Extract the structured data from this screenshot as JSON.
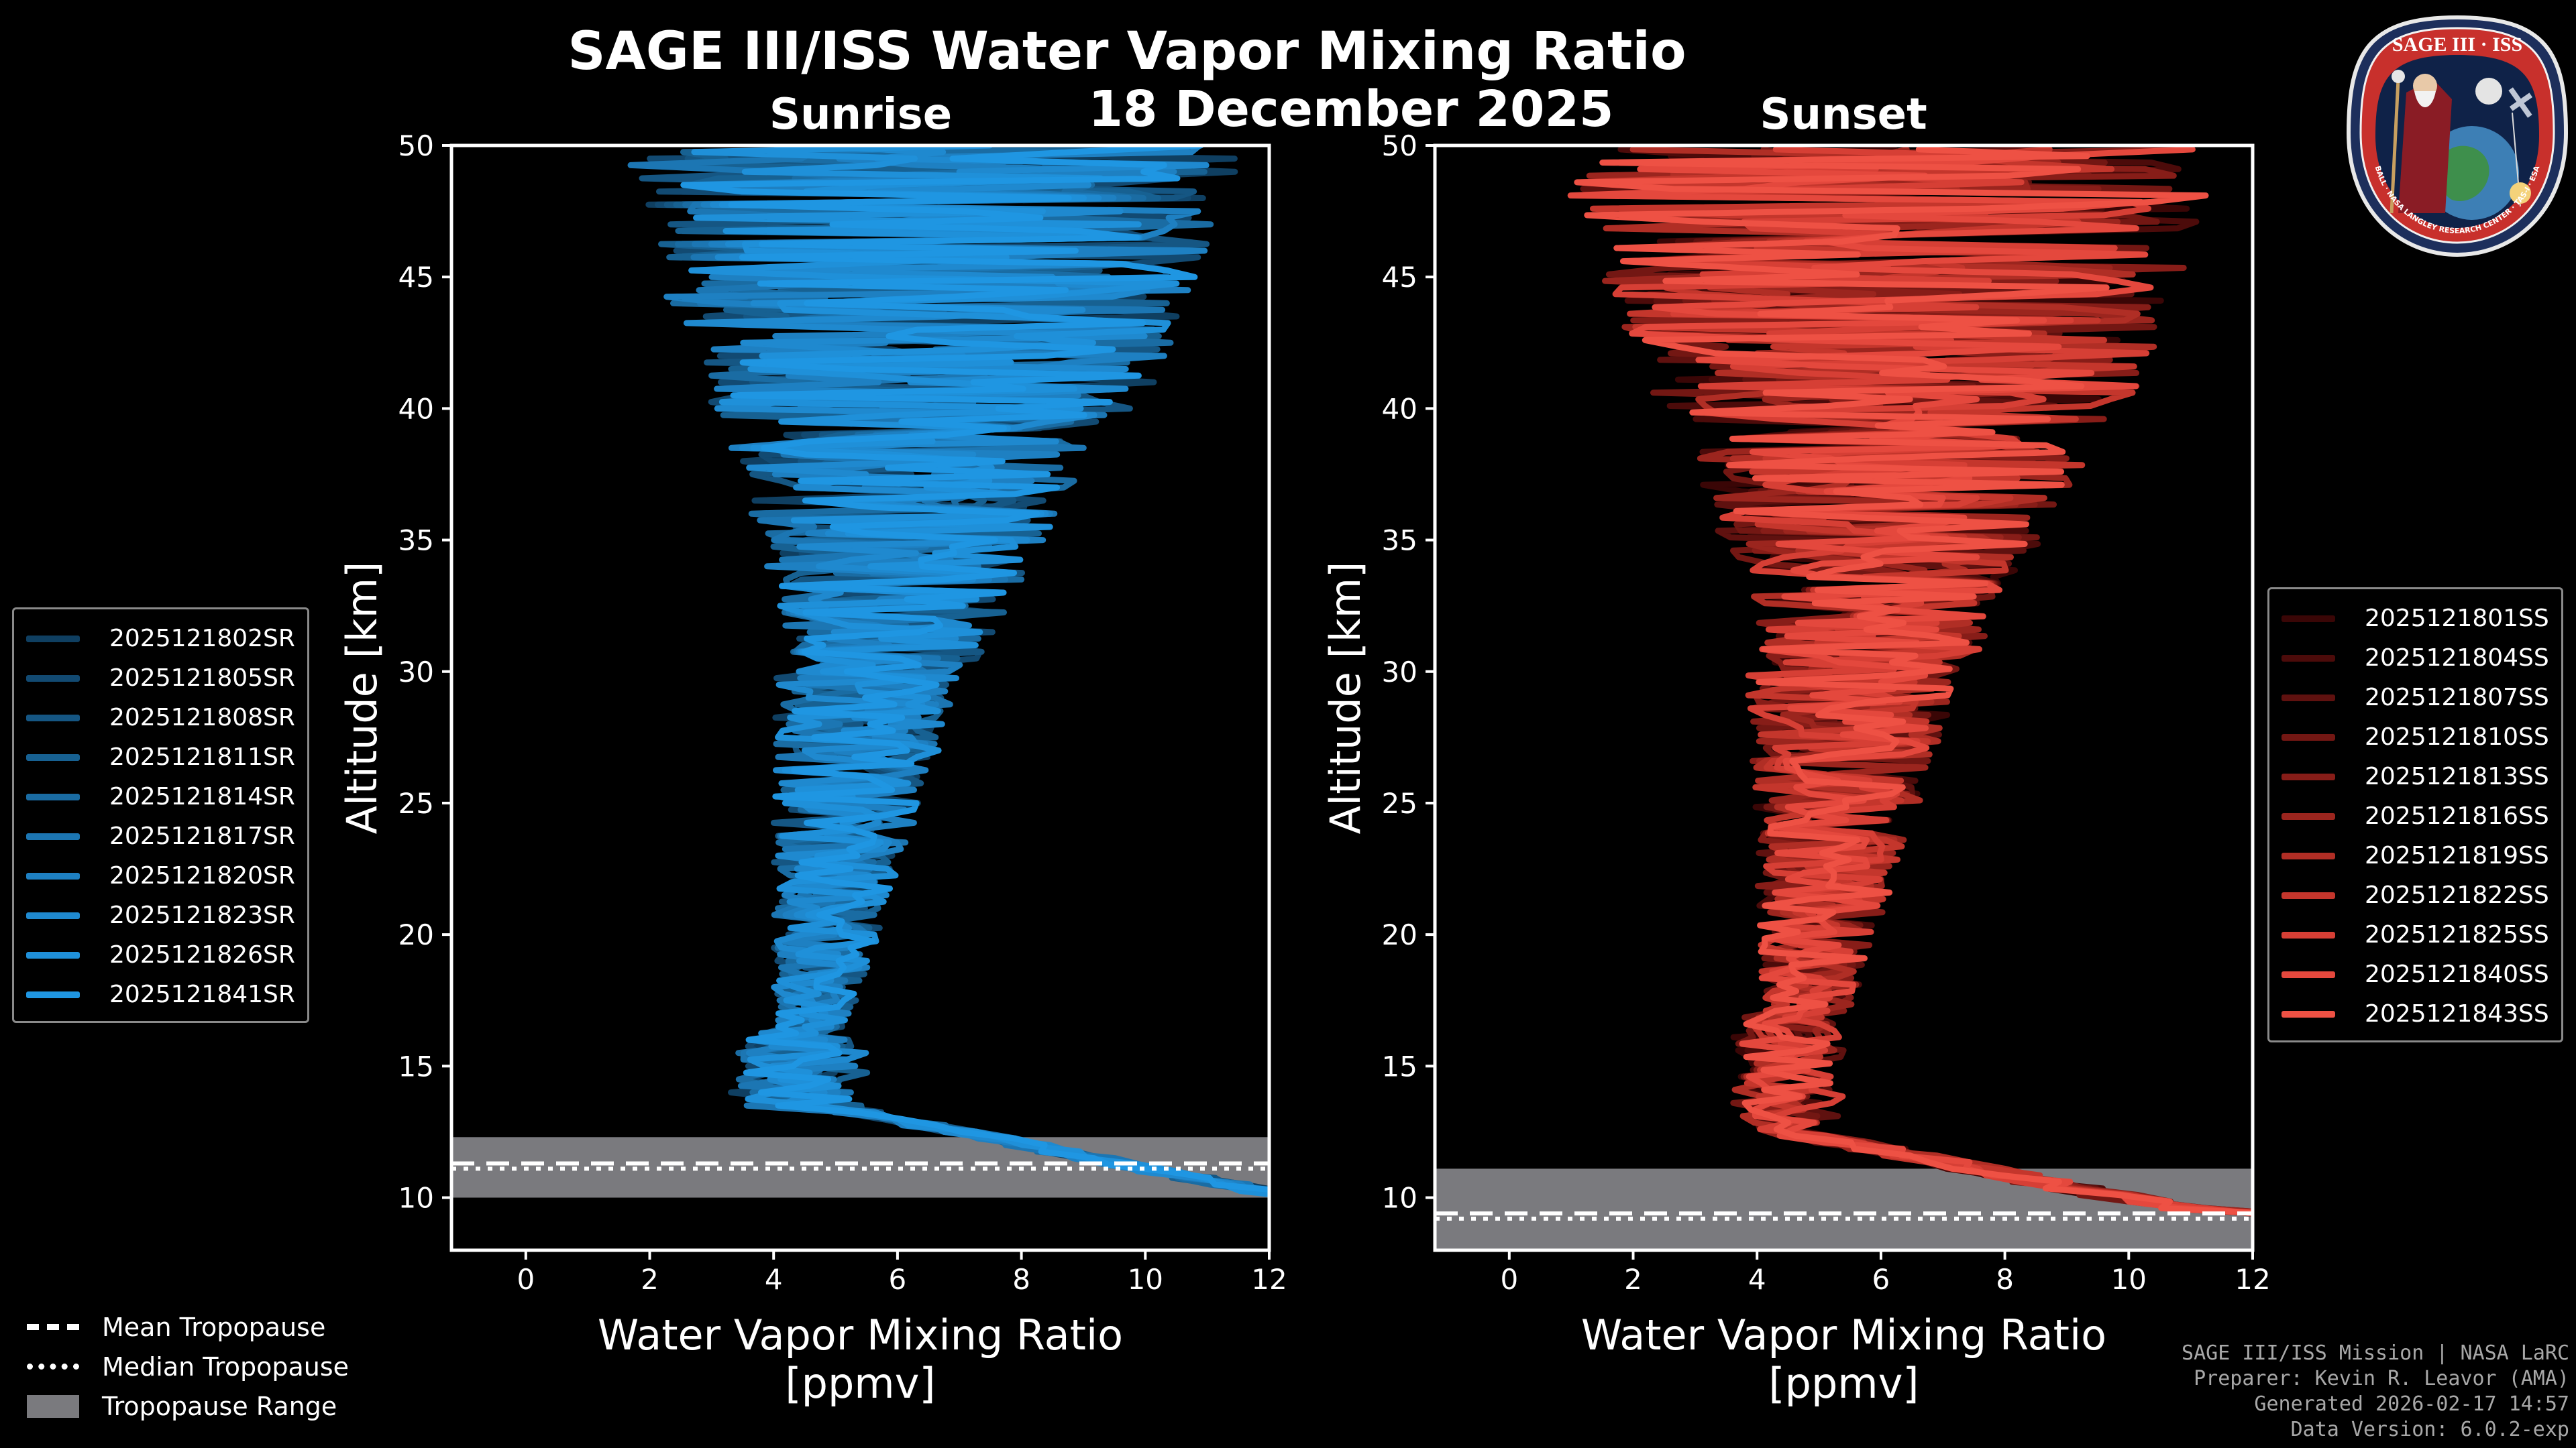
{
  "chart_data": [
    {
      "type": "line",
      "panel": "Sunrise",
      "xlabel": "Water Vapor Mixing Ratio\n[ppmv]",
      "xlabel_line1": "Water Vapor Mixing Ratio",
      "xlabel_line2": "[ppmv]",
      "ylabel": "Altitude [km]",
      "xlim": [
        -1.2,
        12
      ],
      "ylim": [
        8,
        50
      ],
      "xticks": [
        0,
        2,
        4,
        6,
        8,
        10,
        12
      ],
      "yticks": [
        10,
        15,
        20,
        25,
        30,
        35,
        40,
        45,
        50
      ],
      "legend_position": "left",
      "series": [
        {
          "name": "2025121802SR",
          "color": "#0f3f61"
        },
        {
          "name": "2025121805SR",
          "color": "#124a72"
        },
        {
          "name": "2025121808SR",
          "color": "#155683"
        },
        {
          "name": "2025121811SR",
          "color": "#176192"
        },
        {
          "name": "2025121814SR",
          "color": "#1a6ca3"
        },
        {
          "name": "2025121817SR",
          "color": "#1c76b3"
        },
        {
          "name": "2025121820SR",
          "color": "#1e80c2"
        },
        {
          "name": "2025121823SR",
          "color": "#1f89cf"
        },
        {
          "name": "2025121826SR",
          "color": "#1f90d9"
        },
        {
          "name": "2025121841SR",
          "color": "#1f96e2"
        }
      ],
      "tropopause": {
        "mean_km": 11.3,
        "median_km": 11.1,
        "range_km": [
          10.0,
          12.3
        ]
      }
    },
    {
      "type": "line",
      "panel": "Sunset",
      "xlabel": "Water Vapor Mixing Ratio\n[ppmv]",
      "xlabel_line1": "Water Vapor Mixing Ratio",
      "xlabel_line2": "[ppmv]",
      "ylabel": "Altitude [km]",
      "xlim": [
        -1.2,
        12
      ],
      "ylim": [
        8,
        50
      ],
      "xticks": [
        0,
        2,
        4,
        6,
        8,
        10,
        12
      ],
      "yticks": [
        10,
        15,
        20,
        25,
        30,
        35,
        40,
        45,
        50
      ],
      "legend_position": "right",
      "series": [
        {
          "name": "2025121801SS",
          "color": "#3a0606"
        },
        {
          "name": "2025121804SS",
          "color": "#4c0b0a"
        },
        {
          "name": "2025121807SS",
          "color": "#5f110f"
        },
        {
          "name": "2025121810SS",
          "color": "#731713"
        },
        {
          "name": "2025121813SS",
          "color": "#871d18"
        },
        {
          "name": "2025121816SS",
          "color": "#9b251e"
        },
        {
          "name": "2025121819SS",
          "color": "#b02e25"
        },
        {
          "name": "2025121822SS",
          "color": "#c4362c"
        },
        {
          "name": "2025121825SS",
          "color": "#d63f35"
        },
        {
          "name": "2025121840SS",
          "color": "#e4483d"
        },
        {
          "name": "2025121843SS",
          "color": "#ee5144"
        }
      ],
      "tropopause": {
        "mean_km": 9.4,
        "median_km": 9.2,
        "range_km": [
          8.0,
          11.1
        ]
      }
    }
  ],
  "title": "SAGE III/ISS Water Vapor Mixing Ratio",
  "subtitle_date": "18 December 2025",
  "subtitle_left": "Sunrise",
  "subtitle_right": "Sunset",
  "footer_legend": {
    "mean": "Mean Tropopause",
    "median": "Median Tropopause",
    "range": "Tropopause Range"
  },
  "credits": {
    "line1": "SAGE III/ISS Mission | NASA LaRC",
    "line2": "Preparer: Kevin R. Leavor (AMA)",
    "line3": "Generated 2026-02-17 14:57",
    "line4": "Data Version: 6.0.2-exp"
  },
  "badge": {
    "title": "SAGE III · ISS",
    "ring_text": "BALL · NASA LANGLEY RESEARCH CENTER · TAS-I · ESA"
  },
  "colors": {
    "sunrise": "#1f96e2",
    "sunset": "#ee5144",
    "tropopause_range": "#7a7a7e",
    "background": "#000000"
  }
}
